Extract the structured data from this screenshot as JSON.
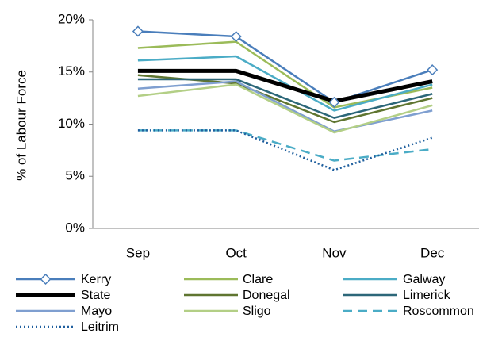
{
  "chart_data": {
    "type": "line",
    "y_label": "% of Labour Force",
    "categories": [
      "Sep",
      "Oct",
      "Nov",
      "Dec"
    ],
    "ylim": [
      0,
      20
    ],
    "yticks": [
      {
        "value": 0,
        "label": "0%"
      },
      {
        "value": 5,
        "label": "5%"
      },
      {
        "value": 10,
        "label": "10%"
      },
      {
        "value": 15,
        "label": "15%"
      },
      {
        "value": 20,
        "label": "20%"
      }
    ],
    "grid": false,
    "legend": "bottom",
    "series": [
      {
        "name": "Kerry",
        "color": "#4a7ebb",
        "marker": "diamond",
        "values": [
          18.9,
          18.4,
          12.1,
          15.2
        ]
      },
      {
        "name": "Clare",
        "color": "#9bbb59",
        "values": [
          17.3,
          17.9,
          11.6,
          13.5
        ]
      },
      {
        "name": "Galway",
        "color": "#4bacc6",
        "values": [
          16.1,
          16.5,
          11.3,
          13.8
        ]
      },
      {
        "name": "State",
        "color": "#000000",
        "width": 5,
        "values": [
          15.1,
          15.1,
          12.2,
          14.1
        ]
      },
      {
        "name": "Donegal",
        "color": "#5f7530",
        "values": [
          14.7,
          13.9,
          10.2,
          12.5
        ]
      },
      {
        "name": "Limerick",
        "color": "#2c6779",
        "values": [
          14.3,
          14.3,
          10.6,
          12.9
        ]
      },
      {
        "name": "Mayo",
        "color": "#7f9fd0",
        "values": [
          13.4,
          14.1,
          9.3,
          11.3
        ]
      },
      {
        "name": "Sligo",
        "color": "#b3cf86",
        "values": [
          12.7,
          13.8,
          9.2,
          11.8
        ]
      },
      {
        "name": "Roscommon",
        "color": "#4bacc6",
        "dash": "dashed",
        "values": [
          9.4,
          9.4,
          6.5,
          7.6
        ]
      },
      {
        "name": "Leitrim",
        "color": "#1f5f9e",
        "dash": "dotted",
        "values": [
          9.4,
          9.4,
          5.6,
          8.7
        ]
      }
    ]
  }
}
